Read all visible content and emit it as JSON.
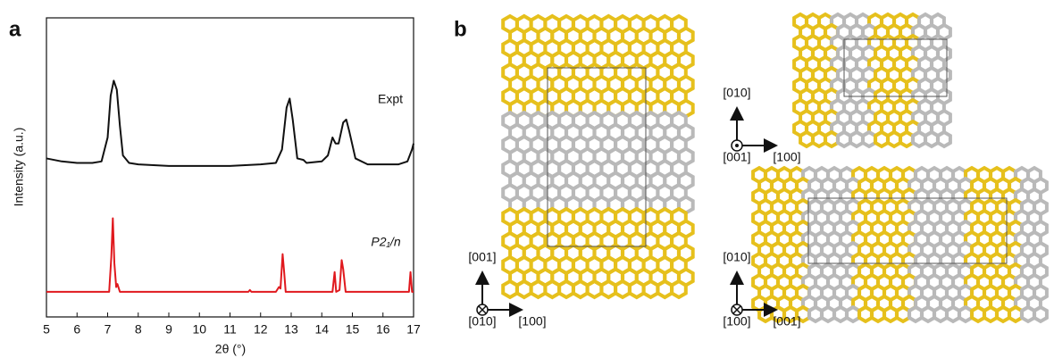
{
  "chart_data": {
    "type": "line",
    "xlabel": "2θ (°)",
    "ylabel": "Intensity (a.u.)",
    "xlim": [
      5,
      17
    ],
    "xticks": [
      5,
      6,
      7,
      8,
      9,
      10,
      11,
      12,
      13,
      14,
      15,
      16,
      17
    ],
    "ylim": [
      0,
      100
    ],
    "series": [
      {
        "name": "Expt",
        "color": "#111111",
        "x": [
          5,
          5.5,
          6,
          6.5,
          6.8,
          7.0,
          7.1,
          7.2,
          7.3,
          7.4,
          7.5,
          7.7,
          8,
          9,
          10,
          11,
          12,
          12.5,
          12.7,
          12.85,
          12.95,
          13.05,
          13.2,
          13.4,
          13.5,
          14,
          14.2,
          14.35,
          14.45,
          14.55,
          14.7,
          14.8,
          14.9,
          15.1,
          15.5,
          16,
          16.5,
          16.8,
          16.95,
          17
        ],
        "values": [
          53,
          52,
          51.5,
          51.5,
          52,
          60,
          74,
          79,
          76,
          64,
          54,
          51.5,
          51,
          50.5,
          50.5,
          50.5,
          51,
          51.5,
          56,
          70,
          73,
          66,
          53,
          52.5,
          51.5,
          52,
          54,
          60,
          58,
          58,
          65,
          66,
          62,
          53,
          51,
          51,
          51,
          52,
          56,
          58
        ]
      },
      {
        "name": "P2₁/n",
        "color": "#e0191e",
        "x": [
          5,
          7.05,
          7.12,
          7.17,
          7.22,
          7.28,
          7.32,
          7.4,
          11.6,
          11.65,
          11.7,
          12.5,
          12.6,
          12.65,
          12.72,
          12.77,
          12.82,
          14.35,
          14.42,
          14.47,
          14.58,
          14.65,
          14.7,
          14.78,
          16.85,
          16.9,
          16.95,
          17
        ],
        "values": [
          8.4,
          8.4,
          20,
          33,
          18,
          10,
          11,
          8.4,
          8.4,
          9,
          8.4,
          8.4,
          10,
          9.5,
          21,
          15,
          8.4,
          8.4,
          15,
          8.4,
          9,
          19,
          16,
          8.4,
          8.4,
          15,
          8.4,
          8.4
        ]
      }
    ]
  },
  "panel_labels": [
    "a",
    "b"
  ],
  "structure_views": [
    {
      "up": "[001]",
      "normal": "[010]",
      "right": "[100]"
    },
    {
      "up": "[010]",
      "normal": "[001]",
      "right": "[100]"
    },
    {
      "up": "[010]",
      "normal": "[100]",
      "right": "[001]"
    }
  ]
}
